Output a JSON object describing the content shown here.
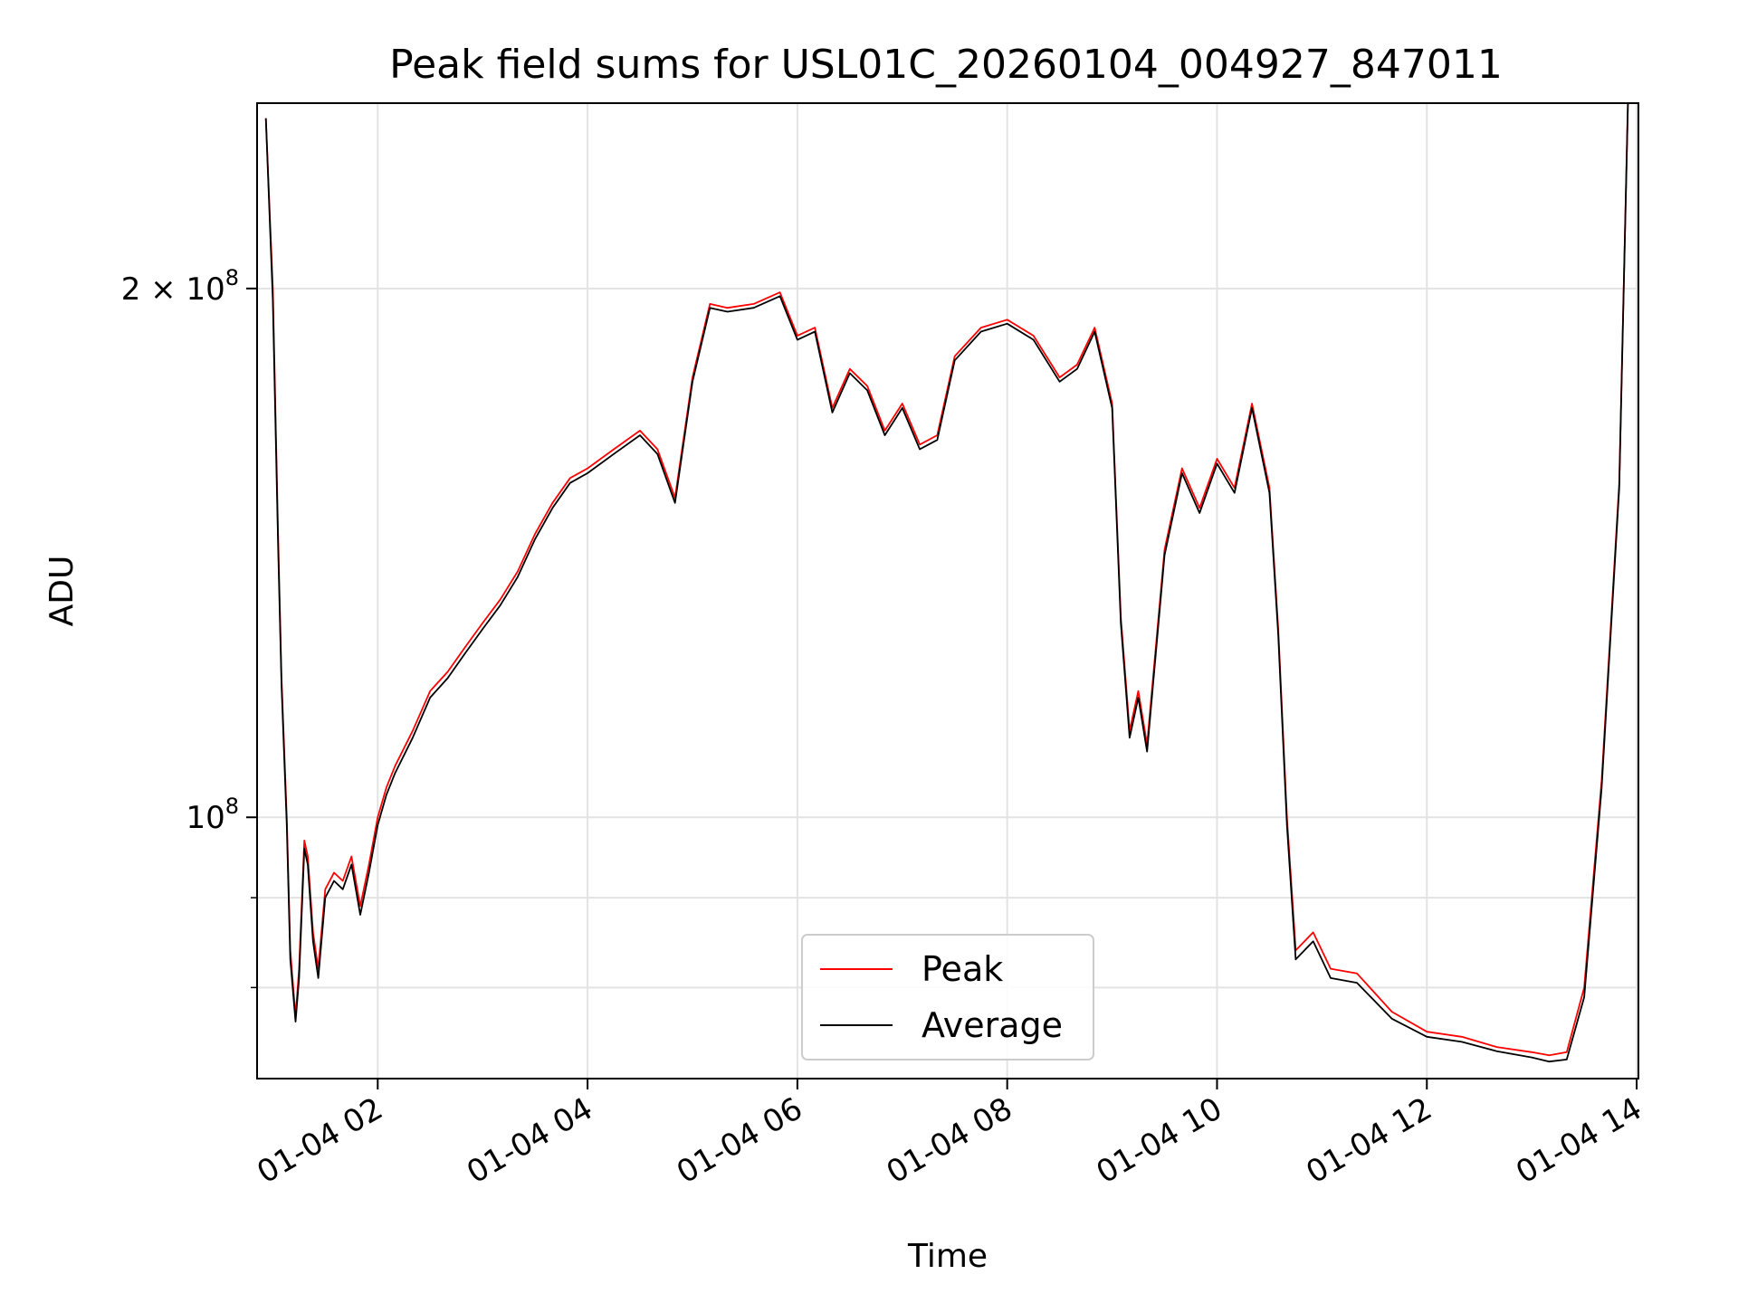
{
  "chart_data": {
    "type": "line",
    "title": "Peak field sums for USL01C_20260104_004927_847011",
    "xlabel": "Time",
    "ylabel": "ADU",
    "yscale": "log",
    "xlim": [
      "2026-01-04 00:51",
      "2026-01-04 14:01"
    ],
    "ylim": [
      71000000,
      255000000
    ],
    "grid": true,
    "legend_position": "lower center",
    "x_ticks": [
      {
        "x": "2026-01-04 02:00",
        "label": "01-04 02"
      },
      {
        "x": "2026-01-04 04:00",
        "label": "01-04 04"
      },
      {
        "x": "2026-01-04 06:00",
        "label": "01-04 06"
      },
      {
        "x": "2026-01-04 08:00",
        "label": "01-04 08"
      },
      {
        "x": "2026-01-04 10:00",
        "label": "01-04 10"
      },
      {
        "x": "2026-01-04 12:00",
        "label": "01-04 12"
      },
      {
        "x": "2026-01-04 14:00",
        "label": "01-04 14"
      }
    ],
    "y_ticks_major": [
      {
        "value": 100000000,
        "label_base": "10",
        "label_exp": "8"
      },
      {
        "value": 200000000,
        "label_base": "2 × 10",
        "label_exp": "8"
      }
    ],
    "y_ticks_minor": [
      80000000,
      90000000
    ],
    "series": [
      {
        "name": "Peak",
        "color": "#ff0000",
        "x": [
          "2026-01-04 00:56",
          "2026-01-04 01:00",
          "2026-01-04 01:03",
          "2026-01-04 01:05",
          "2026-01-04 01:08",
          "2026-01-04 01:10",
          "2026-01-04 01:13",
          "2026-01-04 01:15",
          "2026-01-04 01:18",
          "2026-01-04 01:20",
          "2026-01-04 01:23",
          "2026-01-04 01:26",
          "2026-01-04 01:30",
          "2026-01-04 01:35",
          "2026-01-04 01:40",
          "2026-01-04 01:45",
          "2026-01-04 01:50",
          "2026-01-04 01:55",
          "2026-01-04 02:00",
          "2026-01-04 02:05",
          "2026-01-04 02:10",
          "2026-01-04 02:20",
          "2026-01-04 02:30",
          "2026-01-04 02:40",
          "2026-01-04 02:50",
          "2026-01-04 03:00",
          "2026-01-04 03:10",
          "2026-01-04 03:20",
          "2026-01-04 03:30",
          "2026-01-04 03:40",
          "2026-01-04 03:50",
          "2026-01-04 04:00",
          "2026-01-04 04:15",
          "2026-01-04 04:30",
          "2026-01-04 04:40",
          "2026-01-04 04:50",
          "2026-01-04 05:00",
          "2026-01-04 05:10",
          "2026-01-04 05:20",
          "2026-01-04 05:35",
          "2026-01-04 05:50",
          "2026-01-04 06:00",
          "2026-01-04 06:10",
          "2026-01-04 06:20",
          "2026-01-04 06:30",
          "2026-01-04 06:40",
          "2026-01-04 06:50",
          "2026-01-04 07:00",
          "2026-01-04 07:10",
          "2026-01-04 07:20",
          "2026-01-04 07:30",
          "2026-01-04 07:45",
          "2026-01-04 08:00",
          "2026-01-04 08:15",
          "2026-01-04 08:30",
          "2026-01-04 08:40",
          "2026-01-04 08:50",
          "2026-01-04 09:00",
          "2026-01-04 09:05",
          "2026-01-04 09:10",
          "2026-01-04 09:15",
          "2026-01-04 09:20",
          "2026-01-04 09:30",
          "2026-01-04 09:40",
          "2026-01-04 09:50",
          "2026-01-04 10:00",
          "2026-01-04 10:10",
          "2026-01-04 10:20",
          "2026-01-04 10:30",
          "2026-01-04 10:35",
          "2026-01-04 10:40",
          "2026-01-04 10:45",
          "2026-01-04 10:55",
          "2026-01-04 11:05",
          "2026-01-04 11:20",
          "2026-01-04 11:40",
          "2026-01-04 12:00",
          "2026-01-04 12:20",
          "2026-01-04 12:40",
          "2026-01-04 13:00",
          "2026-01-04 13:10",
          "2026-01-04 13:20",
          "2026-01-04 13:30",
          "2026-01-04 13:40",
          "2026-01-04 13:50",
          "2026-01-04 13:55"
        ],
        "values": [
          250000000,
          200000000,
          145000000,
          120000000,
          100000000,
          84000000,
          77000000,
          82000000,
          97000000,
          95000000,
          86000000,
          82000000,
          91000000,
          93000000,
          92000000,
          95000000,
          89000000,
          94000000,
          100000000,
          104000000,
          107000000,
          112000000,
          118000000,
          121000000,
          125000000,
          129000000,
          133000000,
          138000000,
          145000000,
          151000000,
          156000000,
          158000000,
          162000000,
          166000000,
          162000000,
          152000000,
          178000000,
          196000000,
          195000000,
          196000000,
          199000000,
          188000000,
          190000000,
          171000000,
          180000000,
          176000000,
          166000000,
          172000000,
          163000000,
          165000000,
          183000000,
          190000000,
          192000000,
          188000000,
          178000000,
          181000000,
          190000000,
          172000000,
          130000000,
          112000000,
          118000000,
          110000000,
          142000000,
          158000000,
          150000000,
          160000000,
          154000000,
          172000000,
          154000000,
          128000000,
          100000000,
          84000000,
          86000000,
          82000000,
          81500000,
          77500000,
          75500000,
          75000000,
          74000000,
          73500000,
          73200000,
          73500000,
          80000000,
          105000000,
          155000000,
          255000000
        ]
      },
      {
        "name": "Average",
        "color": "#000000",
        "x": [
          "2026-01-04 00:56",
          "2026-01-04 01:00",
          "2026-01-04 01:03",
          "2026-01-04 01:05",
          "2026-01-04 01:08",
          "2026-01-04 01:10",
          "2026-01-04 01:13",
          "2026-01-04 01:15",
          "2026-01-04 01:18",
          "2026-01-04 01:20",
          "2026-01-04 01:23",
          "2026-01-04 01:26",
          "2026-01-04 01:30",
          "2026-01-04 01:35",
          "2026-01-04 01:40",
          "2026-01-04 01:45",
          "2026-01-04 01:50",
          "2026-01-04 01:55",
          "2026-01-04 02:00",
          "2026-01-04 02:05",
          "2026-01-04 02:10",
          "2026-01-04 02:20",
          "2026-01-04 02:30",
          "2026-01-04 02:40",
          "2026-01-04 02:50",
          "2026-01-04 03:00",
          "2026-01-04 03:10",
          "2026-01-04 03:20",
          "2026-01-04 03:30",
          "2026-01-04 03:40",
          "2026-01-04 03:50",
          "2026-01-04 04:00",
          "2026-01-04 04:15",
          "2026-01-04 04:30",
          "2026-01-04 04:40",
          "2026-01-04 04:50",
          "2026-01-04 05:00",
          "2026-01-04 05:10",
          "2026-01-04 05:20",
          "2026-01-04 05:35",
          "2026-01-04 05:50",
          "2026-01-04 06:00",
          "2026-01-04 06:10",
          "2026-01-04 06:20",
          "2026-01-04 06:30",
          "2026-01-04 06:40",
          "2026-01-04 06:50",
          "2026-01-04 07:00",
          "2026-01-04 07:10",
          "2026-01-04 07:20",
          "2026-01-04 07:30",
          "2026-01-04 07:45",
          "2026-01-04 08:00",
          "2026-01-04 08:15",
          "2026-01-04 08:30",
          "2026-01-04 08:40",
          "2026-01-04 08:50",
          "2026-01-04 09:00",
          "2026-01-04 09:05",
          "2026-01-04 09:10",
          "2026-01-04 09:15",
          "2026-01-04 09:20",
          "2026-01-04 09:30",
          "2026-01-04 09:40",
          "2026-01-04 09:50",
          "2026-01-04 10:00",
          "2026-01-04 10:10",
          "2026-01-04 10:20",
          "2026-01-04 10:30",
          "2026-01-04 10:35",
          "2026-01-04 10:40",
          "2026-01-04 10:45",
          "2026-01-04 10:55",
          "2026-01-04 11:05",
          "2026-01-04 11:20",
          "2026-01-04 11:40",
          "2026-01-04 12:00",
          "2026-01-04 12:20",
          "2026-01-04 12:40",
          "2026-01-04 13:00",
          "2026-01-04 13:10",
          "2026-01-04 13:20",
          "2026-01-04 13:30",
          "2026-01-04 13:40",
          "2026-01-04 13:50",
          "2026-01-04 13:55"
        ],
        "values": [
          250000000,
          197000000,
          143000000,
          119000000,
          99000000,
          83000000,
          76500000,
          81000000,
          96000000,
          94000000,
          85000000,
          81000000,
          90000000,
          92000000,
          91000000,
          94000000,
          88000000,
          93000000,
          99000000,
          103000000,
          106000000,
          111000000,
          117000000,
          120000000,
          124000000,
          128000000,
          132000000,
          137000000,
          144000000,
          150000000,
          155000000,
          157000000,
          161000000,
          165000000,
          161000000,
          151000000,
          177000000,
          195000000,
          194000000,
          195000000,
          198000000,
          187000000,
          189000000,
          170000000,
          179000000,
          175000000,
          165000000,
          171000000,
          162000000,
          164000000,
          182000000,
          189000000,
          191000000,
          187000000,
          177000000,
          180000000,
          189000000,
          171000000,
          129000000,
          111000000,
          117000000,
          109000000,
          141000000,
          157000000,
          149000000,
          159000000,
          153000000,
          171000000,
          153000000,
          127000000,
          99000000,
          83000000,
          85000000,
          81000000,
          80500000,
          76800000,
          75000000,
          74500000,
          73600000,
          73000000,
          72600000,
          72800000,
          79000000,
          104000000,
          154000000,
          255000000
        ]
      }
    ]
  }
}
